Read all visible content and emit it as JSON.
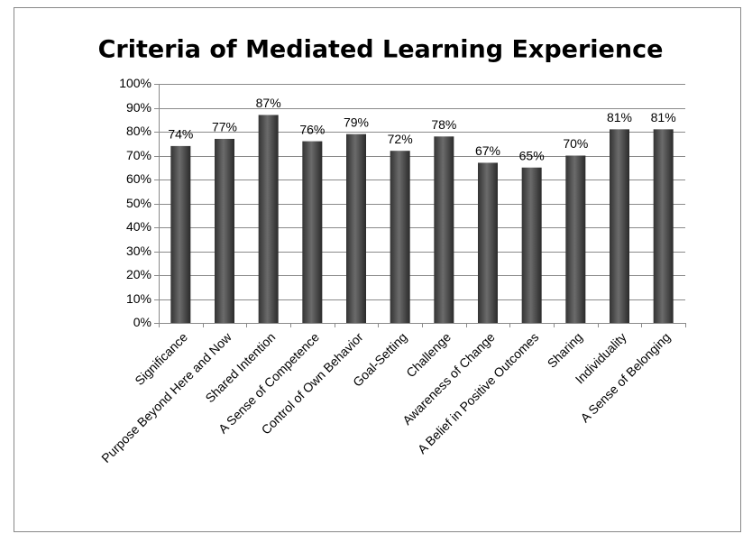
{
  "chart_data": {
    "type": "bar",
    "title": "Criteria of Mediated Learning Experience",
    "categories": [
      "Significance",
      "Purpose Beyond Here and Now",
      "Shared Intention",
      "A Sense of Competence",
      "Control of Own Behavior",
      "Goal-Setting",
      "Challenge",
      "Awareness of Change",
      "A Belief in Positive Outcomes",
      "Sharing",
      "Individuality",
      "A Sense of Belonging"
    ],
    "values": [
      74,
      77,
      87,
      76,
      79,
      72,
      78,
      67,
      65,
      70,
      81,
      81
    ],
    "value_labels": [
      "74%",
      "77%",
      "87%",
      "76%",
      "79%",
      "72%",
      "78%",
      "67%",
      "65%",
      "70%",
      "81%",
      "81%"
    ],
    "color": "#6b6b6b",
    "ylim": [
      0,
      100
    ],
    "yticks": [
      {
        "value": 0,
        "label": "0%"
      },
      {
        "value": 10,
        "label": "10%"
      },
      {
        "value": 20,
        "label": "20%"
      },
      {
        "value": 30,
        "label": "30%"
      },
      {
        "value": 40,
        "label": "40%"
      },
      {
        "value": 50,
        "label": "50%"
      },
      {
        "value": 60,
        "label": "60%"
      },
      {
        "value": 70,
        "label": "70%"
      },
      {
        "value": 80,
        "label": "80%"
      },
      {
        "value": 90,
        "label": "90%"
      },
      {
        "value": 100,
        "label": "100%"
      }
    ],
    "grid": true
  }
}
